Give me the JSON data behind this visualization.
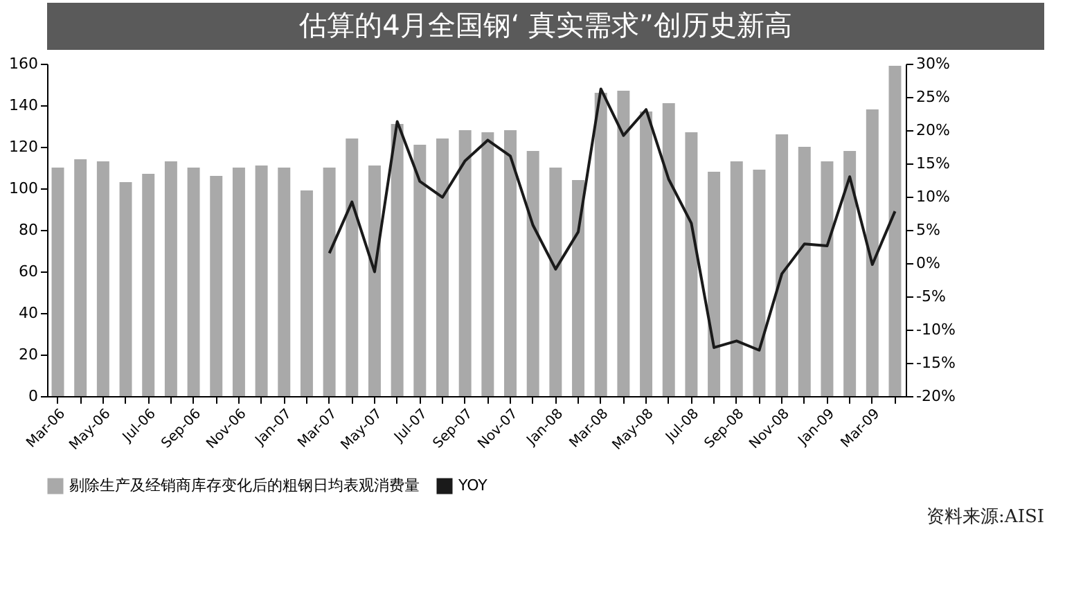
{
  "chart_data": {
    "type": "bar",
    "title": "估算的4月全国钢‘ 真实需求”创历史新高",
    "categories": [
      "Mar-06",
      null,
      "May-06",
      null,
      "Jul-06",
      null,
      "Sep-06",
      null,
      "Nov-06",
      null,
      "Jan-07",
      null,
      "Mar-07",
      null,
      "May-07",
      null,
      "Jul-07",
      null,
      "Sep-07",
      null,
      "Nov-07",
      null,
      "Jan-08",
      null,
      "Mar-08",
      null,
      "May-08",
      null,
      "Jul-08",
      null,
      "Sep-08",
      null,
      "Nov-08",
      null,
      "Jan-09",
      null,
      "Mar-09",
      null
    ],
    "series": [
      {
        "name": "剔除生产及经销商库存变化后的粗钢日均表观消费量",
        "color": "#a9a9a9",
        "values": [
          110,
          114,
          113,
          103,
          107,
          113,
          110,
          106,
          110,
          111,
          110,
          99,
          110,
          124,
          111,
          131,
          121,
          124,
          128,
          127,
          128,
          118,
          110,
          104,
          146,
          147,
          137,
          141,
          127,
          108,
          113,
          109,
          126,
          120,
          113,
          118,
          138,
          159
        ]
      },
      {
        "name": "YOY",
        "type": "line",
        "axis": "y2",
        "color": "#1a1a1a",
        "values": [
          null,
          null,
          null,
          null,
          null,
          null,
          null,
          null,
          null,
          null,
          null,
          null,
          1.5,
          9.2,
          -1.3,
          21.3,
          12.3,
          9.9,
          15.4,
          18.5,
          16.1,
          5.7,
          -0.9,
          4.7,
          26.2,
          19.2,
          23.1,
          12.6,
          6.0,
          -12.7,
          -11.7,
          -13.1,
          -1.6,
          2.9,
          2.6,
          13.0,
          -0.2,
          7.8
        ]
      }
    ],
    "ylim": [
      0,
      160
    ],
    "yticks": [
      0,
      20,
      40,
      60,
      80,
      100,
      120,
      140,
      160
    ],
    "y2lim": [
      -20,
      30
    ],
    "y2ticks": [
      {
        "value": -20,
        "label": "-20%"
      },
      {
        "value": -15,
        "label": "-15%"
      },
      {
        "value": -10,
        "label": "-10%"
      },
      {
        "value": -5,
        "label": "-5%"
      },
      {
        "value": 0,
        "label": "0%"
      },
      {
        "value": 5,
        "label": "5%"
      },
      {
        "value": 10,
        "label": "10%"
      },
      {
        "value": 15,
        "label": "15%"
      },
      {
        "value": 20,
        "label": "20%"
      },
      {
        "value": 25,
        "label": "25%"
      },
      {
        "value": 30,
        "label": "30%"
      }
    ],
    "grid": false,
    "legend": "bottom",
    "annotations": [
      "资料来源:AISI"
    ]
  }
}
